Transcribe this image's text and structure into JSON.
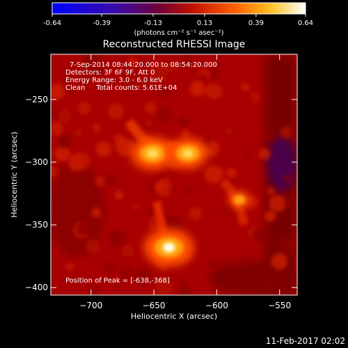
{
  "chart_data": {
    "type": "heatmap",
    "title": "Reconstructed RHESSI Image",
    "colorbar": {
      "ticks": [
        "-0.64",
        "-0.39",
        "-0.13",
        "0.13",
        "0.39",
        "0.64"
      ],
      "label": "(photons cm⁻² s⁻¹ asec⁻²)",
      "vmin": -0.64,
      "vmax": 0.64,
      "colormap": "blue-purple-red-yellow-white"
    },
    "annotations": [
      "7-Sep-2014 08:44:20.000 to 08:54:20.000",
      "Detectors: 3F 6F 9F, Att 0",
      "Energy Range: 3.0 - 6.0 keV",
      "Clean     Total counts: 5.61E+04"
    ],
    "peak_label": "Position of Peak = [-638,-368]",
    "xlabel": "Heliocentric X (arcsec)",
    "ylabel": "Heliocentric Y (arcsec)",
    "xlim": [
      -732,
      -536
    ],
    "ylim": [
      -406,
      -214
    ],
    "xticks": [
      {
        "v": -700,
        "t": "-700"
      },
      {
        "v": -650,
        "t": "-650"
      },
      {
        "v": -600,
        "t": "-600"
      },
      {
        "v": -550,
        "t": "-550"
      }
    ],
    "yticks": [
      {
        "v": -250,
        "t": "-250"
      },
      {
        "v": -300,
        "t": "-300"
      },
      {
        "v": -350,
        "t": "-350"
      },
      {
        "v": -400,
        "t": "-400"
      }
    ],
    "sources": [
      {
        "name": "loop-top-left",
        "x": -651,
        "y": -293,
        "intensity": 0.55
      },
      {
        "name": "loop-top-right",
        "x": -623,
        "y": -293,
        "intensity": 0.5
      },
      {
        "name": "footpoint-peak",
        "x": -638,
        "y": -368,
        "intensity": 0.64
      },
      {
        "name": "right-knot",
        "x": -582,
        "y": -330,
        "intensity": 0.2
      }
    ],
    "grid": false
  },
  "footer": {
    "date": "11-Feb-2017 02:02"
  },
  "colors": {
    "background": "#000000",
    "text": "#ffffff"
  }
}
